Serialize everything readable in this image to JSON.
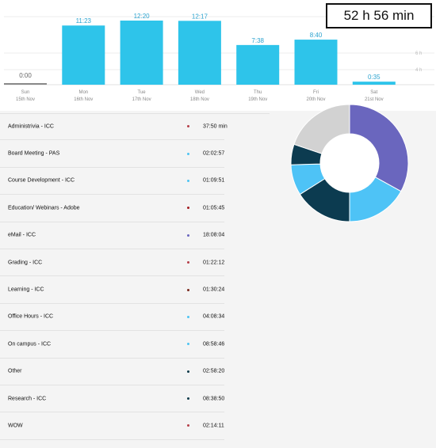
{
  "total": "52 h 56 min",
  "chart_data": {
    "type": "bar",
    "categories": [
      "Sun 15th Nov",
      "Mon 16th Nov",
      "Tue 17th Nov",
      "Wed 18th Nov",
      "Thu 19th Nov",
      "Fri 20th Nov",
      "Sat 21st Nov"
    ],
    "days": [
      {
        "day": "Sun",
        "date": "15th Nov",
        "label": "0:00",
        "minutes": 0
      },
      {
        "day": "Mon",
        "date": "16th Nov",
        "label": "11:23",
        "minutes": 683
      },
      {
        "day": "Tue",
        "date": "17th Nov",
        "label": "12:20",
        "minutes": 740
      },
      {
        "day": "Wed",
        "date": "18th Nov",
        "label": "12:17",
        "minutes": 737
      },
      {
        "day": "Thu",
        "date": "19th Nov",
        "label": "7:38",
        "minutes": 458
      },
      {
        "day": "Fri",
        "date": "20th Nov",
        "label": "8:40",
        "minutes": 520
      },
      {
        "day": "Sat",
        "date": "21st Nov",
        "label": "0:35",
        "minutes": 35
      }
    ],
    "grid_labels": [
      "8 h",
      "6 h",
      "4 h"
    ],
    "bar_color": "#2ec4ea"
  },
  "activities": [
    {
      "name": "Administrivia - ICC",
      "duration": "37:50 min",
      "color": "#b5404a"
    },
    {
      "name": "Board Meeting - PAS",
      "duration": "02:02:57",
      "color": "#4fc4f2"
    },
    {
      "name": "Course Development - ICC",
      "duration": "01:09:51",
      "color": "#4fc4f2"
    },
    {
      "name": "Education/ Webinars - Adobe",
      "duration": "01:05:45",
      "color": "#a31d22"
    },
    {
      "name": "eMail - ICC",
      "duration": "18:08:04",
      "color": "#6a66be"
    },
    {
      "name": "Grading - ICC",
      "duration": "01:22:12",
      "color": "#b5404a"
    },
    {
      "name": "Learning - ICC",
      "duration": "01:30:24",
      "color": "#7a2a1e"
    },
    {
      "name": "Office Hours - ICC",
      "duration": "04:08:34",
      "color": "#4fc4f2"
    },
    {
      "name": "On campus - ICC",
      "duration": "08:58:46",
      "color": "#4fc4f2"
    },
    {
      "name": "Other",
      "duration": "02:58:20",
      "color": "#0d3b4a"
    },
    {
      "name": "Research - ICC",
      "duration": "08:38:50",
      "color": "#0d3b4a"
    },
    {
      "name": "WOW",
      "duration": "02:14:11",
      "color": "#b5404a"
    }
  ],
  "donut": [
    {
      "value": 35,
      "color": "#6a66be"
    },
    {
      "value": 18,
      "color": "#4ec3f6"
    },
    {
      "value": 17,
      "color": "#0c3b50"
    },
    {
      "value": 9,
      "color": "#4ec3f6"
    },
    {
      "value": 6,
      "color": "#0c3b50"
    },
    {
      "value": 21,
      "color": "#d2d2d2"
    }
  ]
}
